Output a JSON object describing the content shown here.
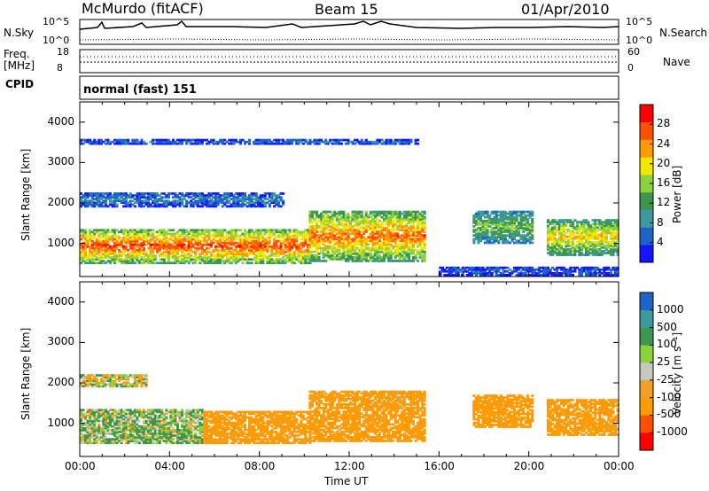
{
  "header": {
    "station": "McMurdo (fitACF)",
    "beam": "Beam 15",
    "date": "01/Apr/2010"
  },
  "top_panels": {
    "nsky_label": "N.Sky",
    "nsky_ticks": [
      "10^5",
      "10^0"
    ],
    "nsearch_label": "N.Search",
    "nsearch_ticks": [
      "10^5",
      "10^0"
    ],
    "freq_label_1": "Freq.",
    "freq_label_2": "[MHz]",
    "freq_ticks": [
      "18",
      "8"
    ],
    "nave_label": "Nave",
    "nave_ticks": [
      "60",
      "0"
    ],
    "cpid_label": "CPID",
    "cpid_mode": "normal (fast) 151"
  },
  "colors": {
    "power_scale": [
      "#1414ff",
      "#1e64c8",
      "#3c9aa0",
      "#3c9650",
      "#8cd23c",
      "#f0e600",
      "#ff9b00",
      "#ff5000",
      "#ff0000"
    ],
    "velocity_scale": [
      "#ff0000",
      "#ff5000",
      "#ff9b00",
      "#f0a028",
      "#c8c8c0",
      "#8cd23c",
      "#3c9650",
      "#3c9aa0",
      "#1e64c8"
    ]
  },
  "chart_data": [
    {
      "type": "heatmap",
      "name": "power",
      "xlabel": "",
      "ylabel": "Slant Range [km]",
      "x_ticks": [
        "00:00",
        "04:00",
        "08:00",
        "12:00",
        "16:00",
        "20:00",
        "00:00"
      ],
      "x_range_hours": [
        0,
        24
      ],
      "y_ticks": [
        1000,
        2000,
        3000,
        4000
      ],
      "ylim": [
        180,
        4500
      ],
      "colorbar": {
        "label": "Power [dB]",
        "ticks": [
          "4",
          "8",
          "12",
          "16",
          "20",
          "24",
          "28"
        ],
        "range": [
          0,
          30
        ]
      },
      "echo_regions": [
        {
          "t0": 0.0,
          "t1": 10.2,
          "r0": 500,
          "r1": 1350,
          "level": 26
        },
        {
          "t0": 10.2,
          "t1": 15.3,
          "r0": 550,
          "r1": 1800,
          "level": 24
        },
        {
          "t0": 17.5,
          "t1": 20.2,
          "r0": 1000,
          "r1": 1800,
          "level": 14
        },
        {
          "t0": 20.8,
          "t1": 24.0,
          "r0": 700,
          "r1": 1600,
          "level": 20
        },
        {
          "t0": 0.0,
          "t1": 9.0,
          "r0": 1900,
          "r1": 2250,
          "level": 7
        },
        {
          "t0": 0.0,
          "t1": 15.0,
          "r0": 3450,
          "r1": 3550,
          "level": 6
        },
        {
          "t0": 16.0,
          "t1": 24.0,
          "r0": 200,
          "r1": 400,
          "level": 5
        }
      ]
    },
    {
      "type": "heatmap",
      "name": "velocity",
      "xlabel": "Time UT",
      "ylabel": "Slant Range [km]",
      "x_ticks": [
        "00:00",
        "04:00",
        "08:00",
        "12:00",
        "16:00",
        "20:00",
        "00:00"
      ],
      "x_range_hours": [
        0,
        24
      ],
      "y_ticks": [
        1000,
        2000,
        3000,
        4000
      ],
      "ylim": [
        180,
        4500
      ],
      "colorbar": {
        "label": "Velocity [m s⁻¹]",
        "ticks": [
          "1000",
          "500",
          "100",
          "25",
          "-25",
          "-100",
          "-500",
          "-1000"
        ]
      },
      "echo_regions": [
        {
          "t0": 0.0,
          "t1": 5.5,
          "r0": 500,
          "r1": 1350,
          "level": 100
        },
        {
          "t0": 5.5,
          "t1": 10.2,
          "r0": 500,
          "r1": 1300,
          "level": -250
        },
        {
          "t0": 10.2,
          "t1": 15.3,
          "r0": 550,
          "r1": 1800,
          "level": -250
        },
        {
          "t0": 17.5,
          "t1": 20.2,
          "r0": 900,
          "r1": 1700,
          "level": -300
        },
        {
          "t0": 20.8,
          "t1": 24.0,
          "r0": 700,
          "r1": 1600,
          "level": -250
        },
        {
          "t0": 0.0,
          "t1": 3.0,
          "r0": 1900,
          "r1": 2200,
          "level": 0
        }
      ]
    }
  ]
}
